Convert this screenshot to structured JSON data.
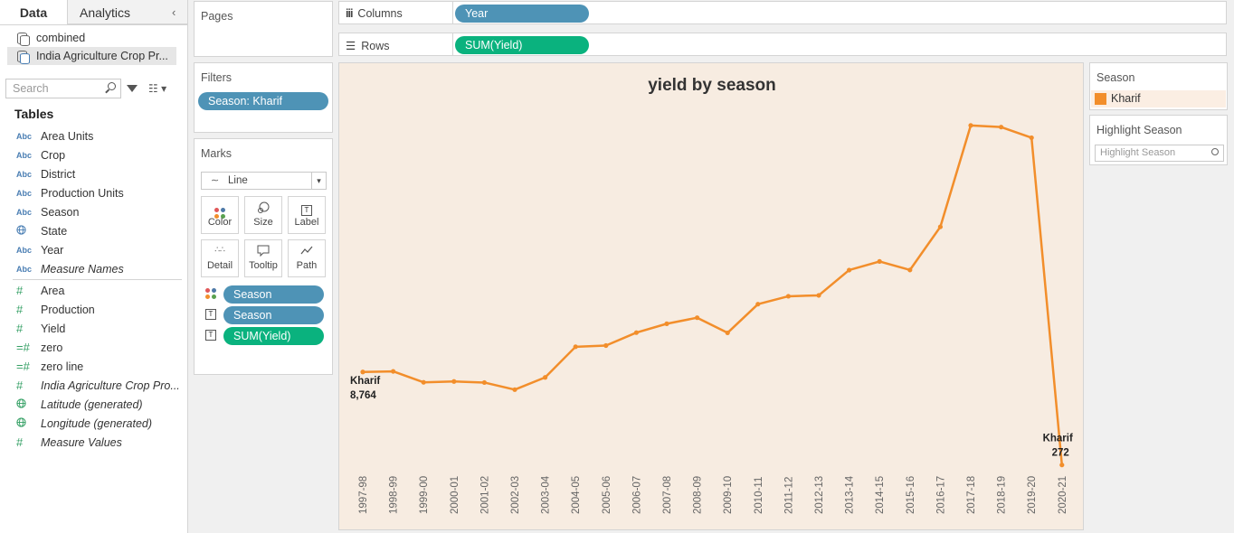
{
  "data_pane": {
    "tabs": [
      "Data",
      "Analytics"
    ],
    "datasources": [
      "combined",
      "India Agriculture Crop Pr..."
    ],
    "search_placeholder": "Search",
    "tables_heading": "Tables",
    "dimensions": [
      {
        "icon": "Abc",
        "label": "Area Units"
      },
      {
        "icon": "Abc",
        "label": "Crop"
      },
      {
        "icon": "Abc",
        "label": "District"
      },
      {
        "icon": "Abc",
        "label": "Production Units"
      },
      {
        "icon": "Abc",
        "label": "Season"
      },
      {
        "icon": "globe-icon",
        "label": "State"
      },
      {
        "icon": "Abc",
        "label": "Year"
      },
      {
        "icon": "Abc",
        "label": "Measure Names"
      }
    ],
    "measures": [
      {
        "icon": "#",
        "label": "Area"
      },
      {
        "icon": "#",
        "label": "Production"
      },
      {
        "icon": "#",
        "label": "Yield"
      },
      {
        "icon": "=#",
        "label": "zero"
      },
      {
        "icon": "=#",
        "label": "zero line"
      },
      {
        "icon": "#",
        "label": "India Agriculture Crop Pro..."
      },
      {
        "icon": "globe-icon",
        "label": "Latitude (generated)"
      },
      {
        "icon": "globe-icon",
        "label": "Longitude (generated)"
      },
      {
        "icon": "#",
        "label": "Measure Values"
      }
    ]
  },
  "pages": {
    "title": "Pages"
  },
  "filters": {
    "title": "Filters",
    "pill": "Season: Kharif"
  },
  "marks": {
    "title": "Marks",
    "type": "Line",
    "buttons": [
      "Color",
      "Size",
      "Label",
      "Detail",
      "Tooltip",
      "Path"
    ],
    "pills": [
      "Season",
      "Season",
      "SUM(Yield)"
    ]
  },
  "columns": {
    "label": "Columns",
    "pill": "Year"
  },
  "rows": {
    "label": "Rows",
    "pill": "SUM(Yield)"
  },
  "legend": {
    "title": "Season",
    "item": "Kharif",
    "color": "#f28e2b"
  },
  "highlight": {
    "title": "Highlight Season",
    "placeholder": "Highlight Season"
  },
  "chart_data": {
    "type": "line",
    "title": "yield by season",
    "line_color": "#f28e2b",
    "background": "#f7ece1",
    "grid": false,
    "categories": [
      "1997-98",
      "1998-99",
      "1999-00",
      "2000-01",
      "2001-02",
      "2002-03",
      "2003-04",
      "2004-05",
      "2005-06",
      "2006-07",
      "2007-08",
      "2008-09",
      "2009-10",
      "2010-11",
      "2011-12",
      "2012-13",
      "2013-14",
      "2014-15",
      "2015-16",
      "2016-17",
      "2017-18",
      "2018-19",
      "2019-20",
      "2020-21"
    ],
    "series": [
      {
        "name": "Kharif",
        "values": [
          8764,
          8820,
          7820,
          7900,
          7800,
          7150,
          8270,
          11070,
          11180,
          12360,
          13170,
          13720,
          12340,
          14960,
          15680,
          15760,
          18070,
          18860,
          18080,
          22020,
          31280,
          31130,
          30160,
          272
        ]
      }
    ],
    "ylim": [
      0,
      33000
    ],
    "labels": [
      {
        "category": "1997-98",
        "series": "Kharif",
        "text": "8,764"
      },
      {
        "category": "2020-21",
        "series": "Kharif",
        "text": "272"
      }
    ]
  }
}
